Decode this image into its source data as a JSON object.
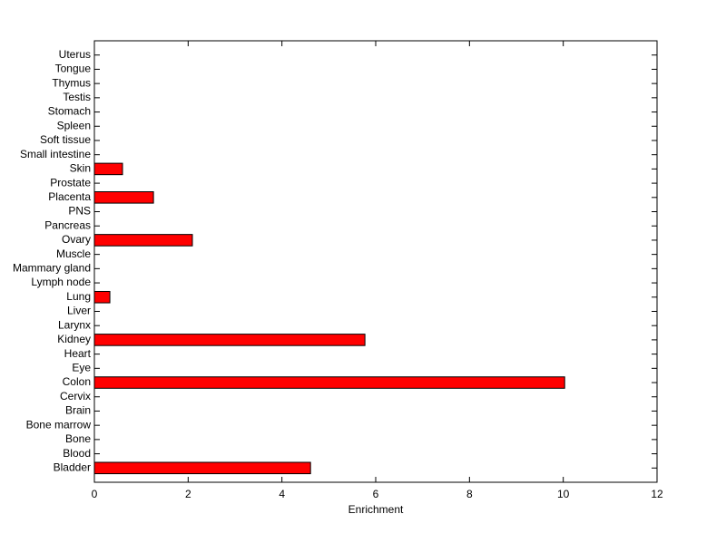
{
  "chart_data": {
    "type": "bar",
    "orientation": "horizontal",
    "categories": [
      "Bladder",
      "Blood",
      "Bone",
      "Bone marrow",
      "Brain",
      "Cervix",
      "Colon",
      "Eye",
      "Heart",
      "Kidney",
      "Larynx",
      "Liver",
      "Lung",
      "Lymph node",
      "Mammary gland",
      "Muscle",
      "Ovary",
      "Pancreas",
      "PNS",
      "Placenta",
      "Prostate",
      "Skin",
      "Small intestine",
      "Soft tissue",
      "Spleen",
      "Stomach",
      "Testis",
      "Thymus",
      "Tongue",
      "Uterus"
    ],
    "values": [
      4.61,
      0,
      0,
      0,
      0,
      0,
      10.03,
      0,
      0,
      5.77,
      0,
      0,
      0.33,
      0,
      0,
      0,
      2.09,
      0,
      0,
      1.26,
      0,
      0.6,
      0,
      0,
      0,
      0,
      0,
      0,
      0,
      0
    ],
    "color": "#ff0000",
    "xlim": [
      0,
      12
    ],
    "xticks": [
      0,
      2,
      4,
      6,
      8,
      10,
      12
    ],
    "xlabel": "Enrichment"
  }
}
